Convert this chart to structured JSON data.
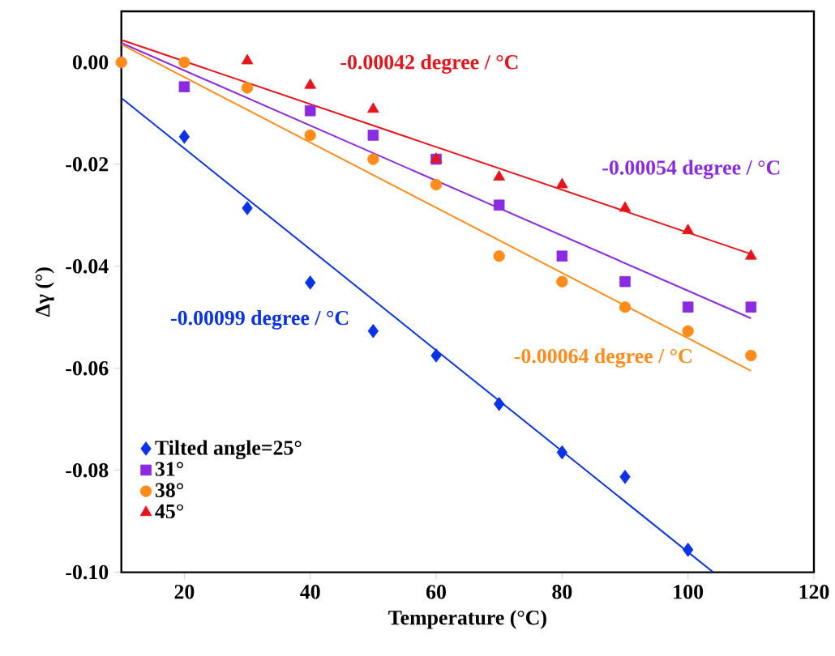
{
  "chart_data": {
    "type": "scatter",
    "xlabel": "Temperature (°C)",
    "ylabel": "Δγ (°)",
    "xlim": [
      10,
      120
    ],
    "xticks": [
      20,
      40,
      60,
      80,
      100,
      120
    ],
    "ylim": [
      -0.1,
      0.01
    ],
    "yticks": [
      {
        "value": 0,
        "label": "0.00"
      },
      {
        "value": -0.02,
        "label": "-0.02"
      },
      {
        "value": -0.04,
        "label": "-0.04"
      },
      {
        "value": -0.06,
        "label": "-0.06"
      },
      {
        "value": -0.08,
        "label": "-0.08"
      },
      {
        "value": -0.1,
        "label": "-0.10"
      }
    ],
    "grid": false,
    "legend": "bottom left",
    "x": [
      10,
      20,
      30,
      40,
      50,
      60,
      70,
      80,
      90,
      100,
      110
    ],
    "series": [
      {
        "name": "Tilted angle=25°",
        "color": "#0a32e6",
        "marker": "diamond",
        "values": [
          0,
          -0.0146,
          -0.0286,
          -0.0432,
          -0.0527,
          -0.0575,
          -0.067,
          -0.0765,
          -0.0813,
          -0.0956,
          null
        ]
      },
      {
        "name": "31°",
        "color": "#8a2be2",
        "marker": "square",
        "values": [
          null,
          -0.0048,
          null,
          -0.0095,
          -0.0143,
          -0.019,
          -0.028,
          -0.038,
          -0.043,
          -0.048,
          -0.048
        ]
      },
      {
        "name": "38°",
        "color": "#ff8c1a",
        "marker": "circle",
        "values": [
          0,
          0,
          -0.005,
          -0.0143,
          -0.019,
          -0.024,
          -0.038,
          -0.043,
          -0.048,
          -0.0527,
          -0.0575
        ]
      },
      {
        "name": "45°",
        "color": "#e8141c",
        "marker": "triangle",
        "values": [
          null,
          null,
          0.0003,
          -0.0045,
          -0.0092,
          -0.019,
          -0.0225,
          -0.024,
          -0.0286,
          -0.033,
          -0.038
        ]
      },
      {
        "type": "line",
        "color": "#0a32e6",
        "x": [
          10,
          104
        ],
        "values": [
          -0.007,
          -0.1
        ]
      },
      {
        "type": "line",
        "color": "#8a2be2",
        "x": [
          10,
          110
        ],
        "values": [
          0.0038,
          -0.0502
        ]
      },
      {
        "type": "line",
        "color": "#ff8c1a",
        "x": [
          10,
          110
        ],
        "values": [
          0.0035,
          -0.0605
        ]
      },
      {
        "type": "line",
        "color": "#e8141c",
        "x": [
          10,
          110
        ],
        "values": [
          0.0044,
          -0.0376
        ]
      }
    ],
    "annotations": [
      "-0.00099 degree / °C",
      "-0.00054 degree / °C",
      "-0.00064 degree / °C",
      "-0.00042 degree / °C"
    ]
  }
}
